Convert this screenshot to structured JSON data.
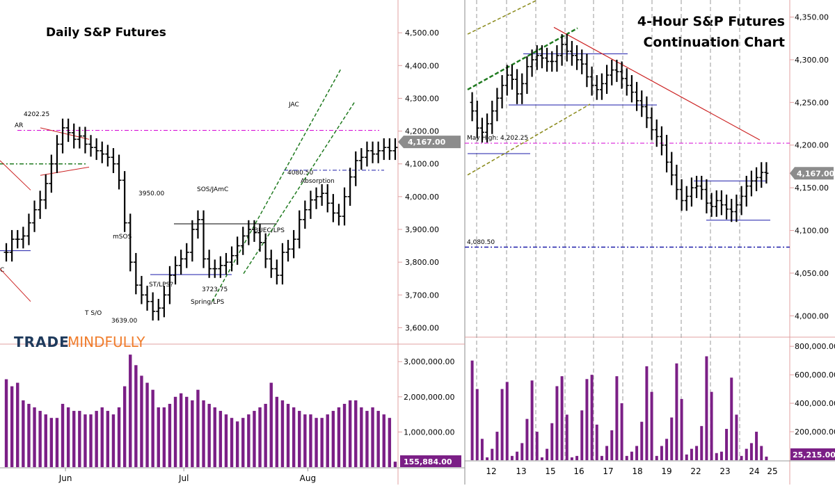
{
  "colors": {
    "bar": "#000000",
    "volume": "#7b1f86",
    "axis_red": "#e0a0a0",
    "pink_dash": "#d400d4",
    "navy": "#1a1aa8",
    "green_dash": "#1f7a1f",
    "olive_dash": "#8a8a1a",
    "red_line": "#cc2222",
    "tag_gray": "#8c8c8c",
    "tag_purple": "#7b1f86",
    "logo_dark": "#1f3a5c",
    "logo_orange": "#f07d2c"
  },
  "logo": {
    "part1": "TRADE",
    "part2": "MINDFULLY"
  },
  "chart_data": [
    {
      "id": "daily",
      "type": "ohlc",
      "title": "Daily S&P Futures",
      "ylim": [
        3550,
        4600
      ],
      "yticks": [
        "4,500.00",
        "4,400.00",
        "4,300.00",
        "4,200.00",
        "4,100.00",
        "4,000.00",
        "3,900.00",
        "3,800.00",
        "3,700.00",
        "3,600.00"
      ],
      "ytick_values": [
        4500,
        4400,
        4300,
        4200,
        4100,
        4000,
        3900,
        3800,
        3700,
        3600
      ],
      "last_price": "4,167.00",
      "last_value": 4167,
      "x_labels": [
        "Jun",
        "Jul",
        "Aug"
      ],
      "x_label_index": [
        10.5,
        31.5,
        53.5
      ],
      "n_bars": 70,
      "prices": [
        3830,
        3870,
        3870,
        3880,
        3920,
        3960,
        3990,
        4040,
        4100,
        4160,
        4210,
        4195,
        4175,
        4185,
        4160,
        4150,
        4140,
        4130,
        4120,
        4100,
        4050,
        3920,
        3800,
        3730,
        3700,
        3680,
        3650,
        3660,
        3700,
        3760,
        3790,
        3810,
        3830,
        3900,
        3930,
        3810,
        3780,
        3780,
        3790,
        3800,
        3820,
        3850,
        3880,
        3900,
        3890,
        3860,
        3810,
        3780,
        3760,
        3830,
        3840,
        3870,
        3930,
        3960,
        3990,
        4000,
        4010,
        3980,
        3950,
        3940,
        4000,
        4060,
        4110,
        4120,
        4140,
        4130,
        4140,
        4150,
        4140,
        4150
      ],
      "volume": {
        "ylim": [
          0,
          3400000
        ],
        "yticks": [
          "3,000,000.00",
          "2,000,000.00",
          "1,000,000.00"
        ],
        "ytick_values": [
          3000000,
          2000000,
          1000000
        ],
        "last_label": "155,884.00",
        "last_value": 155884,
        "values": [
          2500000,
          2300000,
          2400000,
          1900000,
          1800000,
          1700000,
          1600000,
          1500000,
          1400000,
          1400000,
          1800000,
          1700000,
          1600000,
          1600000,
          1500000,
          1500000,
          1600000,
          1700000,
          1600000,
          1500000,
          1700000,
          2300000,
          3200000,
          2900000,
          2600000,
          2400000,
          2200000,
          1700000,
          1700000,
          1800000,
          2000000,
          2100000,
          2000000,
          1900000,
          2200000,
          1900000,
          1800000,
          1700000,
          1600000,
          1500000,
          1400000,
          1300000,
          1400000,
          1500000,
          1600000,
          1700000,
          1800000,
          2400000,
          2000000,
          1900000,
          1800000,
          1700000,
          1600000,
          1500000,
          1500000,
          1400000,
          1400000,
          1500000,
          1600000,
          1700000,
          1800000,
          1900000,
          1900000,
          1700000,
          1600000,
          1700000,
          1600000,
          1500000,
          1400000,
          155884
        ]
      },
      "annotations": [
        "AR",
        "4202.25",
        "3950.00",
        "mSOS",
        "T S/O",
        "3639.00",
        "ST/LPS?",
        "3723.75",
        "Spring/LPS",
        "SOS/JAmC",
        "BUEC/LPS",
        "4080.50",
        "Absorption",
        "JAC"
      ]
    },
    {
      "id": "fourhour",
      "type": "ohlc",
      "title": [
        "4-Hour S&P Futures",
        "Continuation Chart"
      ],
      "ylim": [
        3975,
        4370
      ],
      "yticks": [
        "4,350.00",
        "4,300.00",
        "4,250.00",
        "4,200.00",
        "4,150.00",
        "4,100.00",
        "4,050.00",
        "4,000.00"
      ],
      "ytick_values": [
        4350,
        4300,
        4250,
        4200,
        4150,
        4100,
        4050,
        4000
      ],
      "last_price": "4,167.00",
      "last_value": 4167,
      "x_labels": [
        "12",
        "13",
        "15",
        "16",
        "17",
        "18",
        "19",
        "22",
        "23",
        "24",
        "25"
      ],
      "n_bars": 60,
      "prices": [
        4240,
        4220,
        4215,
        4225,
        4240,
        4255,
        4270,
        4282,
        4277,
        4260,
        4272,
        4292,
        4300,
        4305,
        4302,
        4298,
        4298,
        4305,
        4318,
        4310,
        4305,
        4300,
        4295,
        4280,
        4270,
        4265,
        4272,
        4282,
        4288,
        4286,
        4278,
        4270,
        4262,
        4252,
        4245,
        4232,
        4218,
        4210,
        4200,
        4180,
        4165,
        4148,
        4135,
        4140,
        4150,
        4152,
        4148,
        4132,
        4128,
        4135,
        4130,
        4125,
        4122,
        4130,
        4140,
        4152,
        4158,
        4162,
        4168,
        4167
      ],
      "volume": {
        "ylim": [
          0,
          840000
        ],
        "yticks": [
          "800,000.00",
          "600,000.00",
          "400,000.00",
          "200,000.00"
        ],
        "ytick_values": [
          800000,
          600000,
          400000,
          200000
        ],
        "last_label": "25,215.00",
        "last_value": 25215,
        "values": [
          700000,
          500000,
          150000,
          20000,
          80000,
          200000,
          500000,
          550000,
          30000,
          60000,
          120000,
          290000,
          560000,
          200000,
          20000,
          80000,
          260000,
          520000,
          590000,
          320000,
          20000,
          30000,
          350000,
          570000,
          600000,
          250000,
          30000,
          100000,
          210000,
          590000,
          400000,
          30000,
          60000,
          100000,
          270000,
          660000,
          480000,
          30000,
          100000,
          150000,
          300000,
          680000,
          430000,
          40000,
          80000,
          100000,
          240000,
          730000,
          480000,
          50000,
          60000,
          220000,
          580000,
          320000,
          30000,
          80000,
          120000,
          200000,
          100000,
          25215
        ]
      },
      "annotations": [
        "May High: 4,202.25",
        "4,080.50"
      ]
    }
  ]
}
